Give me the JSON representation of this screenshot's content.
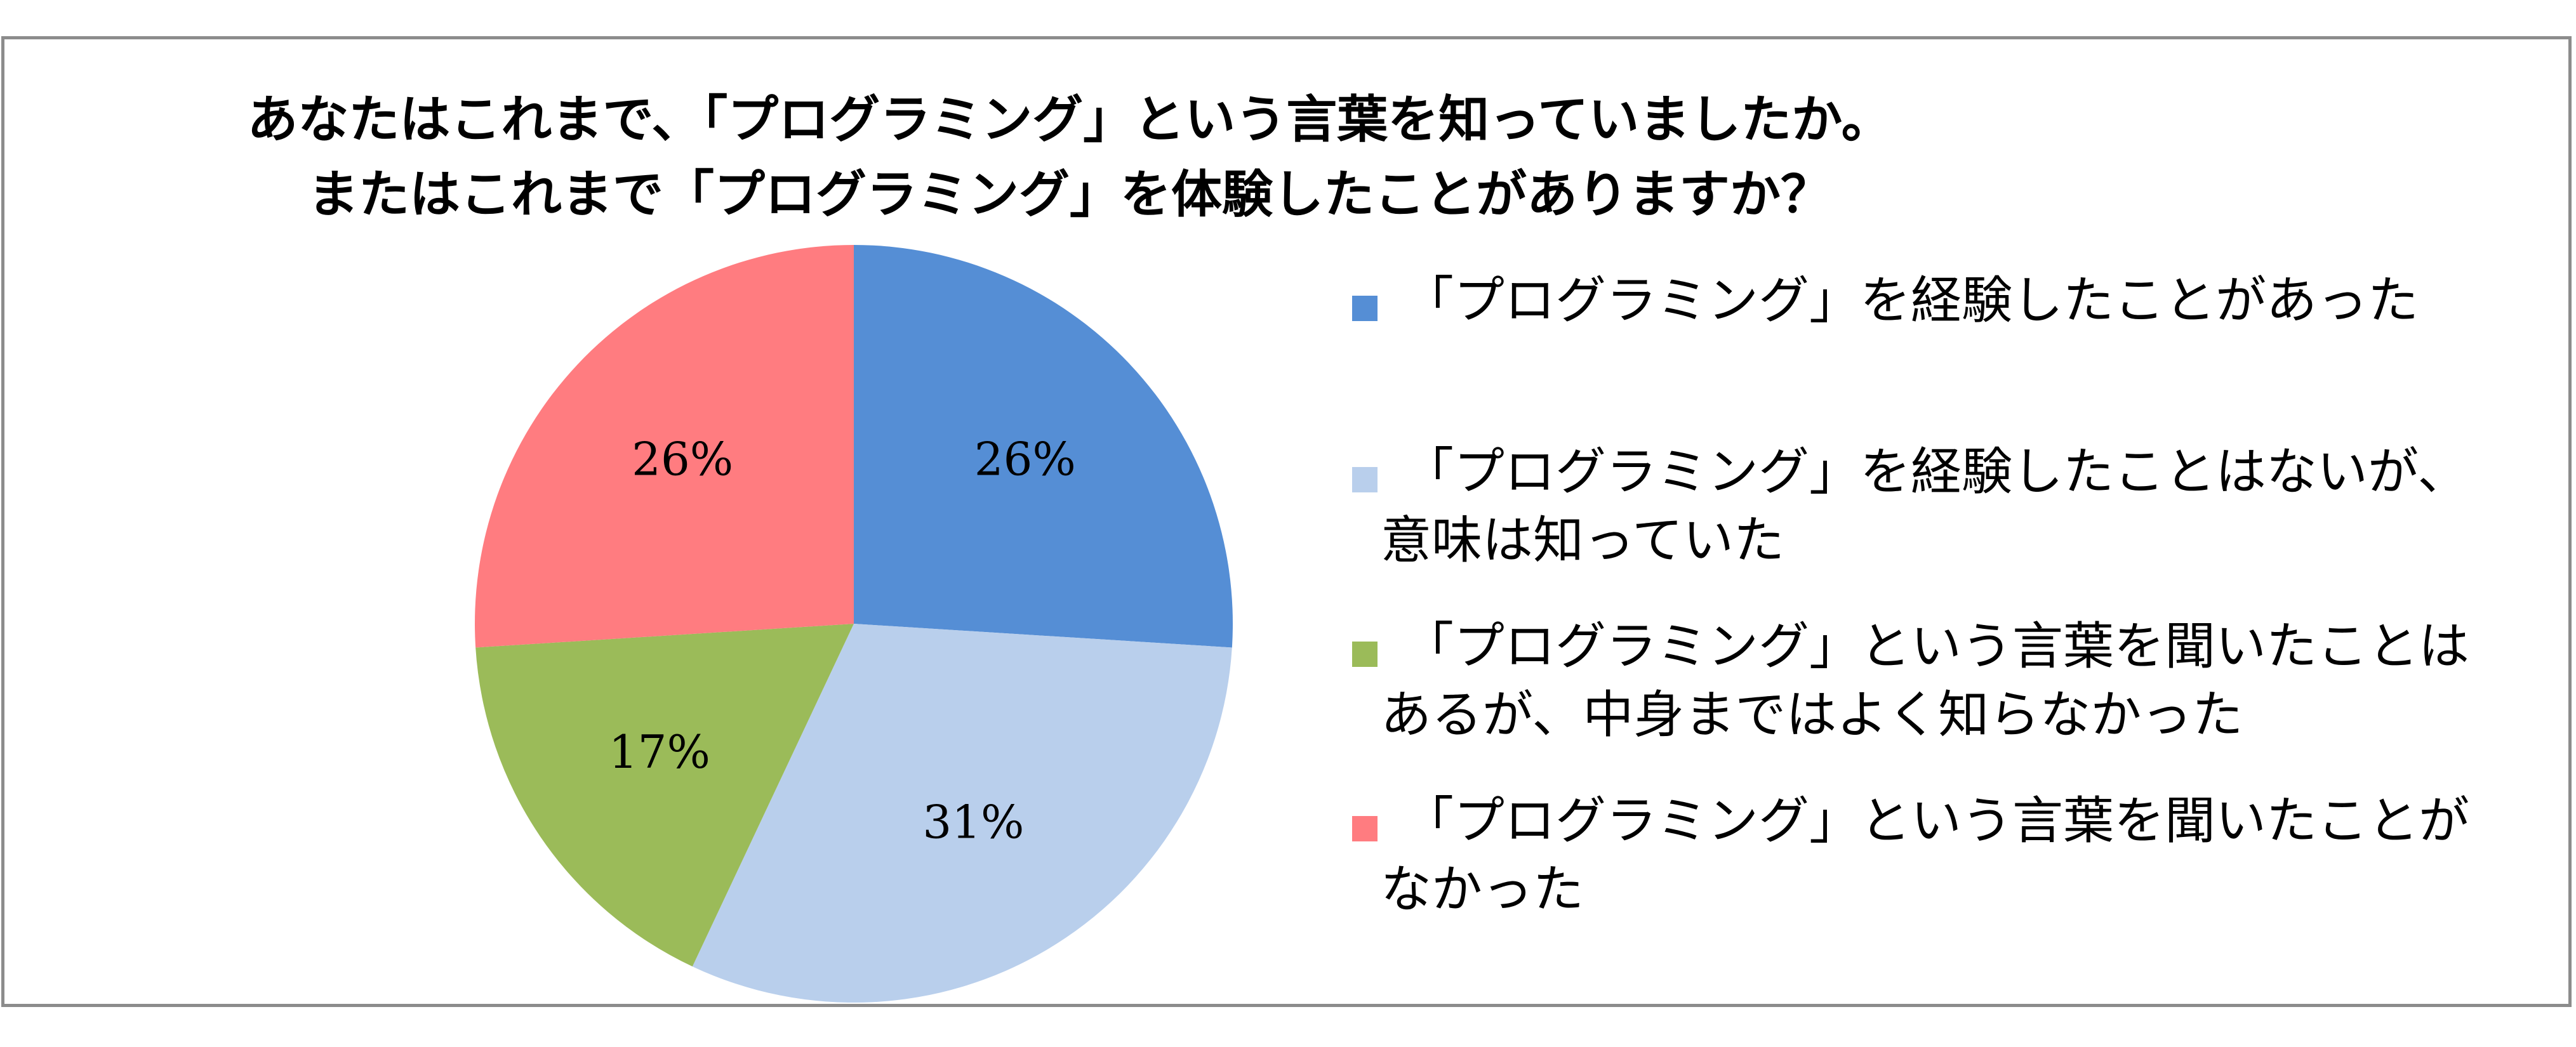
{
  "chart_data": {
    "type": "pie",
    "title_lines": [
      "あなたはこれまで、「プログラミング」という言葉を知っていましたか。",
      "またはこれまで「プログラミング」を体験したことがありますか？"
    ],
    "slices": [
      {
        "label_lines": [
          "「プログラミング」を経験したことがあった"
        ],
        "value": 26,
        "value_label": "26%",
        "color": "#558ed5"
      },
      {
        "label_lines": [
          "「プログラミング」を経験したことはないが、",
          "意味は知っていた"
        ],
        "value": 31,
        "value_label": "31%",
        "color": "#b9cfec"
      },
      {
        "label_lines": [
          "「プログラミング」という言葉を聞いたことは",
          "あるが、中身まではよく知らなかった"
        ],
        "value": 17,
        "value_label": "17%",
        "color": "#9bbb59"
      },
      {
        "label_lines": [
          "「プログラミング」という言葉を聞いたことが",
          "なかった"
        ],
        "value": 26,
        "value_label": "26%",
        "color": "#ff7c80"
      }
    ],
    "legend_position": "right"
  }
}
